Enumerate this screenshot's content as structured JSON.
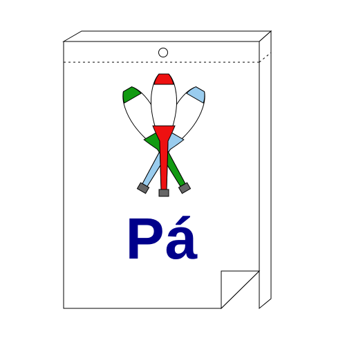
{
  "calendar": {
    "day_label": "Pá",
    "text_color": "#00008b",
    "illustration": "juggling-clubs-icon",
    "clubs": [
      {
        "name": "green-club",
        "color": "#119a11"
      },
      {
        "name": "red-club",
        "color": "#ee1111"
      },
      {
        "name": "light-blue-club",
        "color": "#99ccee"
      }
    ],
    "handle_color": "#666666"
  }
}
